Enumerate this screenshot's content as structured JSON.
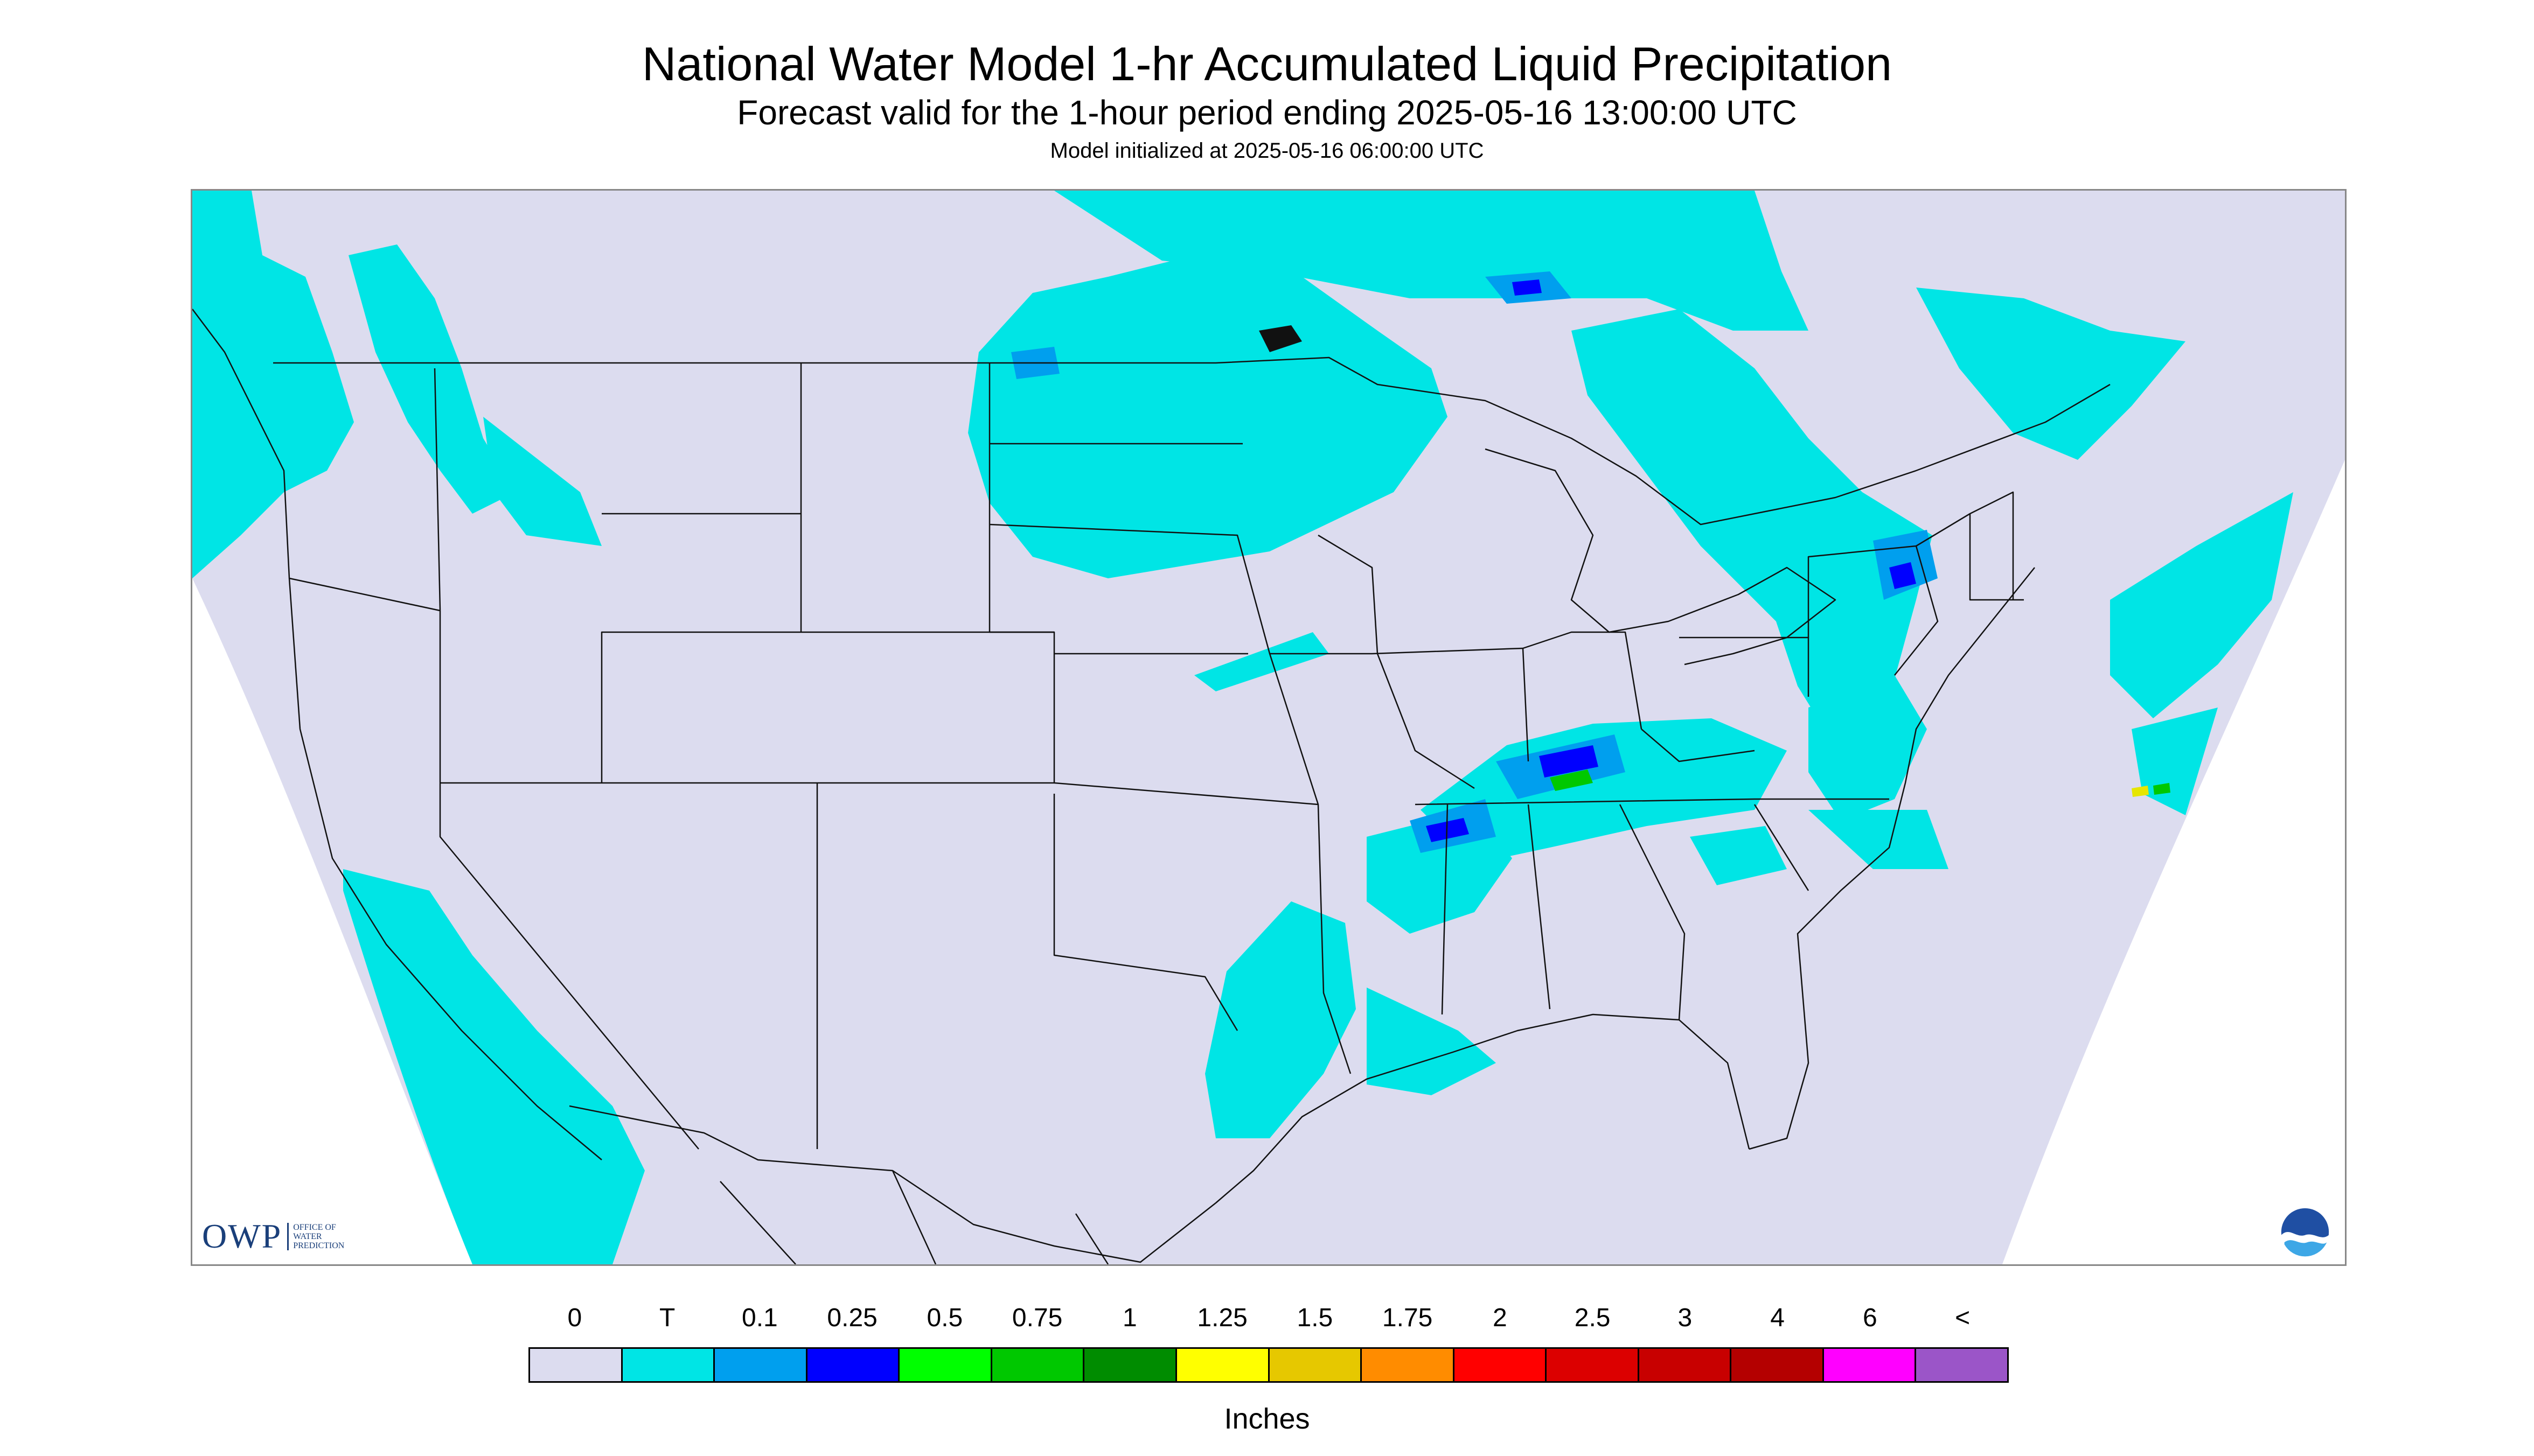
{
  "header": {
    "title": "National Water Model 1-hr Accumulated Liquid Precipitation",
    "subtitle": "Forecast valid for the 1-hour period ending 2025-05-16 13:00:00 UTC",
    "init_line": "Model initialized at 2025-05-16 06:00:00 UTC"
  },
  "map": {
    "projection_fill": "#dcdcef",
    "outside_fill": "#ffffff",
    "boundary_color": "#111111",
    "precip_colors": {
      "trace": "#00e5e5",
      "light": "#009fee",
      "medium": "#0000ff",
      "green": "#00c800",
      "yellow": "#e6e600"
    }
  },
  "logos": {
    "owp_text": "OWP",
    "owp_subtext": [
      "OFFICE OF",
      "WATER",
      "PREDICTION"
    ],
    "noaa_icon": "noaa-logo-icon"
  },
  "legend": {
    "ticks": [
      "0",
      "T",
      "0.1",
      "0.25",
      "0.5",
      "0.75",
      "1",
      "1.25",
      "1.5",
      "1.75",
      "2",
      "2.5",
      "3",
      "4",
      "6",
      "<"
    ],
    "colors": [
      "#dcdcef",
      "#00e5e5",
      "#009fee",
      "#0000ff",
      "#00ff00",
      "#00c800",
      "#008c00",
      "#ffff00",
      "#e6c800",
      "#ff8c00",
      "#ff0000",
      "#dc0000",
      "#c80000",
      "#b40000",
      "#ff00ff",
      "#9b55c8"
    ],
    "unit_label": "Inches"
  }
}
